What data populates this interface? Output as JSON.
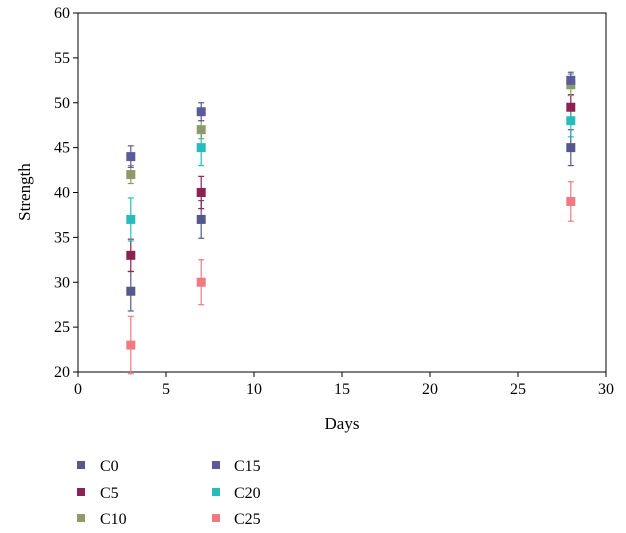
{
  "chart_data": {
    "type": "scatter",
    "title": "",
    "xlabel": "Days",
    "ylabel": "Strength",
    "xlim": [
      0,
      30
    ],
    "ylim": [
      20,
      60
    ],
    "xticks": [
      0,
      5,
      10,
      15,
      20,
      25,
      30
    ],
    "yticks": [
      20,
      25,
      30,
      35,
      40,
      45,
      50,
      55,
      60
    ],
    "grid": false,
    "legend_position": "bottom-left",
    "error_bars": true,
    "series": [
      {
        "name": "C0",
        "color": "#56588a",
        "x": [
          3,
          7,
          28
        ],
        "y": [
          29,
          37,
          45
        ],
        "err": [
          2.2,
          2.1,
          2.0
        ]
      },
      {
        "name": "C5",
        "color": "#8b2252",
        "x": [
          3,
          7,
          28
        ],
        "y": [
          33,
          40,
          49.5
        ],
        "err": [
          1.8,
          1.8,
          1.4
        ]
      },
      {
        "name": "C10",
        "color": "#8e9a6a",
        "x": [
          3,
          7,
          28
        ],
        "y": [
          42,
          47,
          52
        ],
        "err": [
          1.0,
          1.0,
          1.2
        ]
      },
      {
        "name": "C15",
        "color": "#5a5a9c",
        "x": [
          3,
          7,
          28
        ],
        "y": [
          44,
          49,
          52.5
        ],
        "err": [
          1.2,
          1.0,
          0.9
        ]
      },
      {
        "name": "C20",
        "color": "#26bcbc",
        "x": [
          3,
          7,
          28
        ],
        "y": [
          37,
          45,
          48
        ],
        "err": [
          2.4,
          2.0,
          1.8
        ]
      },
      {
        "name": "C25",
        "color": "#f07a80",
        "x": [
          3,
          7,
          28
        ],
        "y": [
          23,
          30,
          39
        ],
        "err": [
          3.2,
          2.5,
          2.2
        ]
      }
    ]
  }
}
